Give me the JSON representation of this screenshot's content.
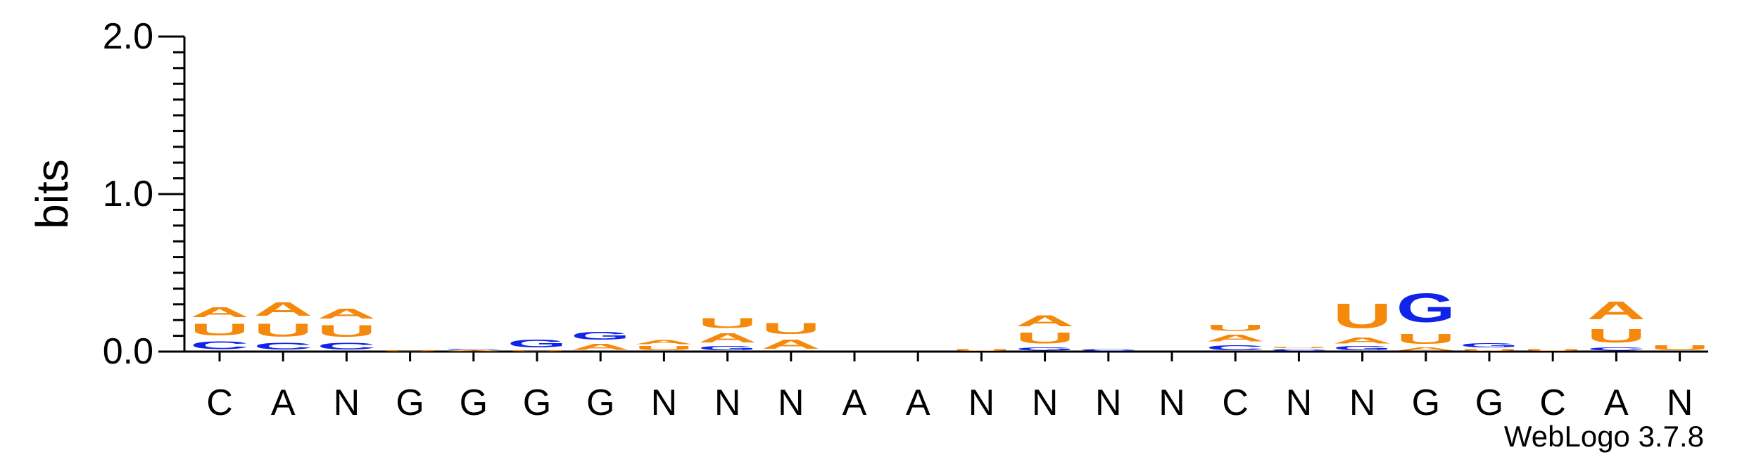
{
  "chart_data": {
    "type": "sequence-logo",
    "ylabel": "bits",
    "ylim": [
      0,
      2.0
    ],
    "y_ticks": [
      "0.0",
      "1.0",
      "2.0"
    ],
    "x_tick_labels": [
      "C",
      "A",
      "N",
      "G",
      "G",
      "G",
      "G",
      "N",
      "N",
      "N",
      "A",
      "A",
      "N",
      "N",
      "N",
      "N",
      "C",
      "N",
      "N",
      "G",
      "G",
      "C",
      "A",
      "N"
    ],
    "footer": "WebLogo 3.7.8",
    "colors": {
      "A": "#f5890c",
      "U": "#f5890c",
      "C": "#0f24e8",
      "G": "#0f24e8"
    },
    "positions": [
      [
        [
          "C",
          0.08
        ],
        [
          "U",
          0.12
        ],
        [
          "A",
          0.1
        ]
      ],
      [
        [
          "C",
          0.07
        ],
        [
          "U",
          0.13
        ],
        [
          "A",
          0.14
        ]
      ],
      [
        [
          "C",
          0.07
        ],
        [
          "U",
          0.12
        ],
        [
          "A",
          0.1
        ]
      ],
      [
        [
          "U",
          0.01
        ]
      ],
      [
        [
          "A",
          0.01
        ],
        [
          "C",
          0.01
        ]
      ],
      [
        [
          "U",
          0.01
        ],
        [
          "G",
          0.08
        ]
      ],
      [
        [
          "A",
          0.06
        ],
        [
          "G",
          0.08
        ]
      ],
      [
        [
          "U",
          0.04
        ],
        [
          "A",
          0.04
        ]
      ],
      [
        [
          "G",
          0.04
        ],
        [
          "A",
          0.09
        ],
        [
          "U",
          0.1
        ]
      ],
      [
        [
          "A",
          0.09
        ],
        [
          "U",
          0.11
        ]
      ],
      [],
      [],
      [
        [
          "U",
          0.02
        ]
      ],
      [
        [
          "G",
          0.03
        ],
        [
          "U",
          0.11
        ],
        [
          "A",
          0.11
        ]
      ],
      [
        [
          "C",
          0.02
        ]
      ],
      [],
      [
        [
          "C",
          0.05
        ],
        [
          "A",
          0.07
        ],
        [
          "U",
          0.06
        ]
      ],
      [
        [
          "C",
          0.02
        ],
        [
          "U",
          0.01
        ]
      ],
      [
        [
          "G",
          0.04
        ],
        [
          "A",
          0.06
        ],
        [
          "U",
          0.25
        ]
      ],
      [
        [
          "A",
          0.03
        ],
        [
          "U",
          0.1
        ],
        [
          "G",
          0.29
        ]
      ],
      [
        [
          "U",
          0.02
        ],
        [
          "G",
          0.04
        ]
      ],
      [
        [
          "U",
          0.02
        ]
      ],
      [
        [
          "C",
          0.03
        ],
        [
          "U",
          0.14
        ],
        [
          "A",
          0.18
        ]
      ],
      [
        [
          "U",
          0.05
        ]
      ]
    ]
  }
}
